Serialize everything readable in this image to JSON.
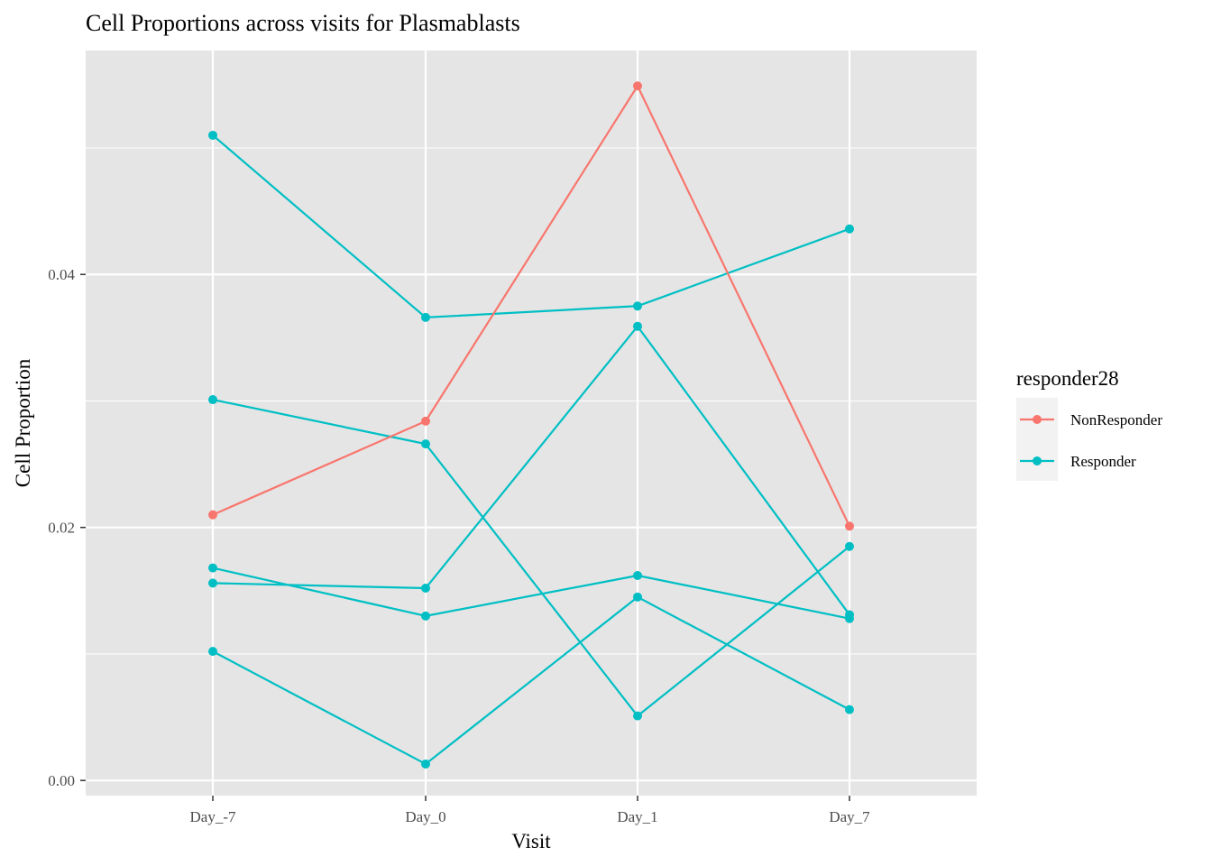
{
  "chart_data": {
    "type": "line",
    "title": "Cell Proportions across visits for Plasmablasts",
    "xlabel": "Visit",
    "ylabel": "Cell Proportion",
    "categories": [
      "Day_-7",
      "Day_0",
      "Day_1",
      "Day_7"
    ],
    "y_ticks": [
      0.0,
      0.02,
      0.04
    ],
    "y_tick_labels": [
      "0.00",
      "0.02",
      "0.04"
    ],
    "ylim": [
      -0.0012,
      0.0577
    ],
    "grid": true,
    "legend": {
      "title": "responder28",
      "position": "right",
      "entries": [
        {
          "label": "NonResponder",
          "color": "#F8766D"
        },
        {
          "label": "Responder",
          "color": "#00BFC4"
        }
      ]
    },
    "series": [
      {
        "group": "NonResponder",
        "color": "#F8766D",
        "values": [
          0.021,
          0.0284,
          0.0549,
          0.0201
        ]
      },
      {
        "group": "Responder",
        "color": "#00BFC4",
        "values": [
          0.051,
          0.0366,
          0.0375,
          0.0436
        ]
      },
      {
        "group": "Responder",
        "color": "#00BFC4",
        "values": [
          0.0301,
          0.0266,
          0.0051,
          0.0185
        ]
      },
      {
        "group": "Responder",
        "color": "#00BFC4",
        "values": [
          0.0168,
          0.013,
          0.0162,
          0.0128
        ]
      },
      {
        "group": "Responder",
        "color": "#00BFC4",
        "values": [
          0.0156,
          0.0152,
          0.0359,
          0.0131
        ]
      },
      {
        "group": "Responder",
        "color": "#00BFC4",
        "values": [
          0.0102,
          0.0013,
          0.0145,
          0.0056
        ]
      }
    ]
  }
}
